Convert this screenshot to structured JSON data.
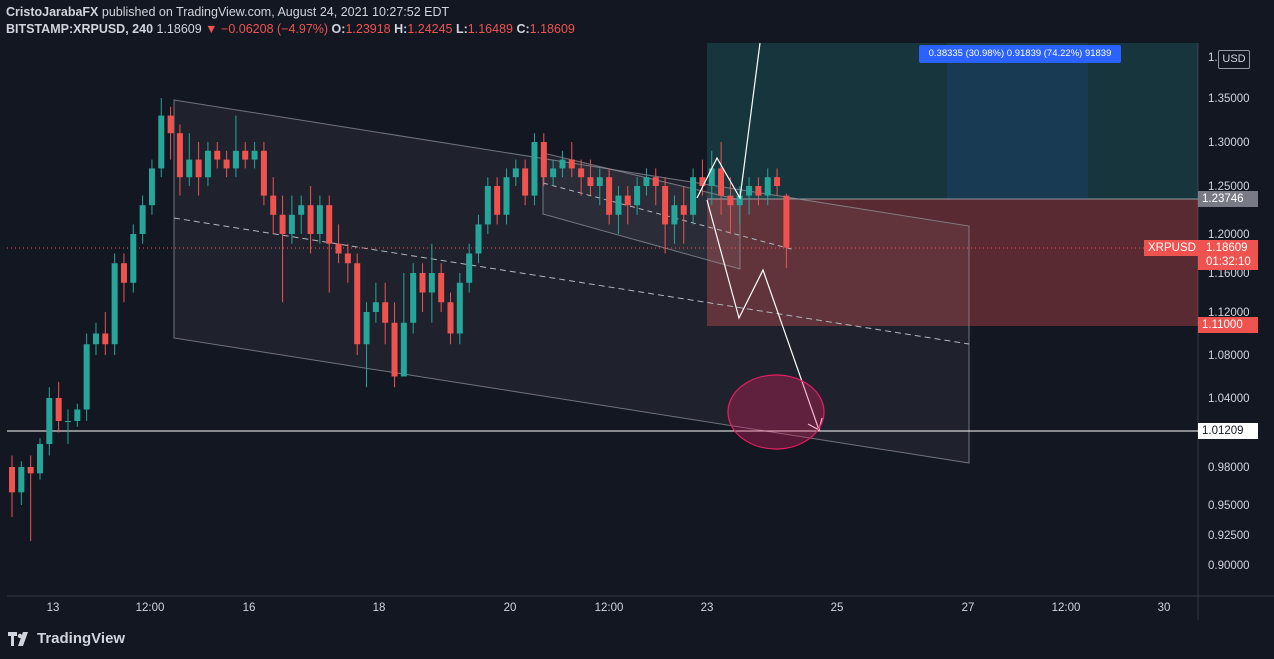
{
  "header": {
    "author": "CristoJarabaFX",
    "published": "published on TradingView.com, August 24, 2021 10:27:52 EDT",
    "symbol": "BITSTAMP:XRPUSD, 240",
    "last": "1.18609",
    "change": "−0.06208 (−4.97%)",
    "o_label": "O:",
    "o": "1.23918",
    "h_label": "H:",
    "h": "1.24245",
    "l_label": "L:",
    "l": "1.16489",
    "c_label": "C:",
    "c": "1.18609"
  },
  "currency_button": "USD",
  "measure_label": "0.38335 (30.98%)  0.91839 (74.22%) 91839",
  "logo_text": "TradingView",
  "price_labels": {
    "target_top": "1.23746",
    "stop": "1.11000",
    "support": "1.01209",
    "symbol": "XRPUSD",
    "current": "1.18609",
    "countdown": "01:32:10"
  },
  "colors": {
    "up": "#26a69a",
    "down": "#ef5350",
    "bg": "#131722"
  },
  "chart_data": {
    "type": "candlestick",
    "symbol": "BITSTAMP:XRPUSD",
    "interval": "240",
    "y_ticks": [
      "1.37500",
      "1.35000",
      "1.30000",
      "1.25000",
      "1.20000",
      "1.16000",
      "1.12000",
      "1.08000",
      "1.04000",
      "0.98000",
      "0.95000",
      "0.92500",
      "0.90000"
    ],
    "y_tick_values": [
      1.375,
      1.35,
      1.3,
      1.25,
      1.2,
      1.16,
      1.12,
      1.08,
      1.04,
      0.98,
      0.95,
      0.925,
      0.9
    ],
    "x_ticks": [
      "13",
      "12:00",
      "16",
      "18",
      "20",
      "12:00",
      "23",
      "25",
      "27",
      "12:00",
      "30"
    ],
    "candles": [
      [
        0.98,
        0.96,
        0.99,
        0.94
      ],
      [
        0.96,
        0.98,
        0.985,
        0.95
      ],
      [
        0.98,
        0.975,
        0.99,
        0.92
      ],
      [
        0.975,
        1.0,
        1.005,
        0.97
      ],
      [
        1.0,
        1.04,
        1.05,
        0.99
      ],
      [
        1.04,
        1.02,
        1.055,
        1.01
      ],
      [
        1.02,
        1.02,
        1.03,
        1.0
      ],
      [
        1.02,
        1.03,
        1.035,
        1.015
      ],
      [
        1.03,
        1.09,
        1.1,
        1.02
      ],
      [
        1.09,
        1.1,
        1.11,
        1.08
      ],
      [
        1.1,
        1.09,
        1.12,
        1.08
      ],
      [
        1.09,
        1.17,
        1.18,
        1.08
      ],
      [
        1.17,
        1.15,
        1.18,
        1.13
      ],
      [
        1.15,
        1.2,
        1.21,
        1.14
      ],
      [
        1.2,
        1.23,
        1.24,
        1.19
      ],
      [
        1.23,
        1.27,
        1.28,
        1.22
      ],
      [
        1.27,
        1.33,
        1.35,
        1.26
      ],
      [
        1.33,
        1.31,
        1.34,
        1.28
      ],
      [
        1.31,
        1.26,
        1.32,
        1.24
      ],
      [
        1.26,
        1.28,
        1.31,
        1.25
      ],
      [
        1.28,
        1.26,
        1.3,
        1.24
      ],
      [
        1.26,
        1.29,
        1.3,
        1.25
      ],
      [
        1.29,
        1.28,
        1.3,
        1.27
      ],
      [
        1.28,
        1.27,
        1.29,
        1.26
      ],
      [
        1.27,
        1.29,
        1.33,
        1.26
      ],
      [
        1.29,
        1.28,
        1.3,
        1.27
      ],
      [
        1.28,
        1.29,
        1.3,
        1.27
      ],
      [
        1.29,
        1.24,
        1.3,
        1.23
      ],
      [
        1.24,
        1.22,
        1.26,
        1.2
      ],
      [
        1.22,
        1.2,
        1.24,
        1.13
      ],
      [
        1.2,
        1.22,
        1.24,
        1.19
      ],
      [
        1.22,
        1.23,
        1.24,
        1.2
      ],
      [
        1.23,
        1.2,
        1.25,
        1.18
      ],
      [
        1.2,
        1.23,
        1.24,
        1.19
      ],
      [
        1.23,
        1.19,
        1.24,
        1.14
      ],
      [
        1.19,
        1.18,
        1.21,
        1.17
      ],
      [
        1.18,
        1.17,
        1.19,
        1.15
      ],
      [
        1.17,
        1.09,
        1.18,
        1.08
      ],
      [
        1.09,
        1.12,
        1.13,
        1.05
      ],
      [
        1.12,
        1.13,
        1.15,
        1.11
      ],
      [
        1.13,
        1.11,
        1.15,
        1.09
      ],
      [
        1.11,
        1.06,
        1.13,
        1.05
      ],
      [
        1.06,
        1.11,
        1.16,
        1.06
      ],
      [
        1.11,
        1.16,
        1.17,
        1.1
      ],
      [
        1.16,
        1.14,
        1.17,
        1.12
      ],
      [
        1.14,
        1.16,
        1.19,
        1.11
      ],
      [
        1.16,
        1.13,
        1.17,
        1.12
      ],
      [
        1.13,
        1.1,
        1.14,
        1.09
      ],
      [
        1.1,
        1.15,
        1.16,
        1.09
      ],
      [
        1.15,
        1.18,
        1.19,
        1.14
      ],
      [
        1.18,
        1.21,
        1.22,
        1.17
      ],
      [
        1.21,
        1.25,
        1.26,
        1.2
      ],
      [
        1.25,
        1.22,
        1.26,
        1.21
      ],
      [
        1.22,
        1.26,
        1.27,
        1.21
      ],
      [
        1.26,
        1.27,
        1.28,
        1.25
      ],
      [
        1.27,
        1.24,
        1.28,
        1.23
      ],
      [
        1.24,
        1.3,
        1.31,
        1.23
      ],
      [
        1.3,
        1.26,
        1.31,
        1.25
      ],
      [
        1.26,
        1.27,
        1.28,
        1.25
      ],
      [
        1.27,
        1.28,
        1.29,
        1.26
      ],
      [
        1.28,
        1.27,
        1.3,
        1.26
      ],
      [
        1.27,
        1.26,
        1.28,
        1.24
      ],
      [
        1.26,
        1.25,
        1.28,
        1.24
      ],
      [
        1.25,
        1.26,
        1.27,
        1.23
      ],
      [
        1.26,
        1.22,
        1.27,
        1.21
      ],
      [
        1.22,
        1.24,
        1.25,
        1.2
      ],
      [
        1.24,
        1.23,
        1.25,
        1.21
      ],
      [
        1.23,
        1.25,
        1.26,
        1.22
      ],
      [
        1.25,
        1.26,
        1.27,
        1.24
      ],
      [
        1.26,
        1.25,
        1.27,
        1.23
      ],
      [
        1.25,
        1.21,
        1.26,
        1.18
      ],
      [
        1.21,
        1.23,
        1.24,
        1.19
      ],
      [
        1.23,
        1.22,
        1.25,
        1.19
      ],
      [
        1.22,
        1.26,
        1.27,
        1.21
      ],
      [
        1.26,
        1.25,
        1.28,
        1.24
      ],
      [
        1.25,
        1.27,
        1.29,
        1.23
      ],
      [
        1.27,
        1.24,
        1.3,
        1.22
      ],
      [
        1.24,
        1.23,
        1.26,
        1.2
      ],
      [
        1.23,
        1.24,
        1.25,
        1.21
      ],
      [
        1.24,
        1.25,
        1.26,
        1.22
      ],
      [
        1.25,
        1.24,
        1.26,
        1.23
      ],
      [
        1.24,
        1.26,
        1.27,
        1.23
      ],
      [
        1.26,
        1.25,
        1.27,
        1.24
      ],
      [
        1.24,
        1.186,
        1.242,
        1.165
      ]
    ]
  }
}
